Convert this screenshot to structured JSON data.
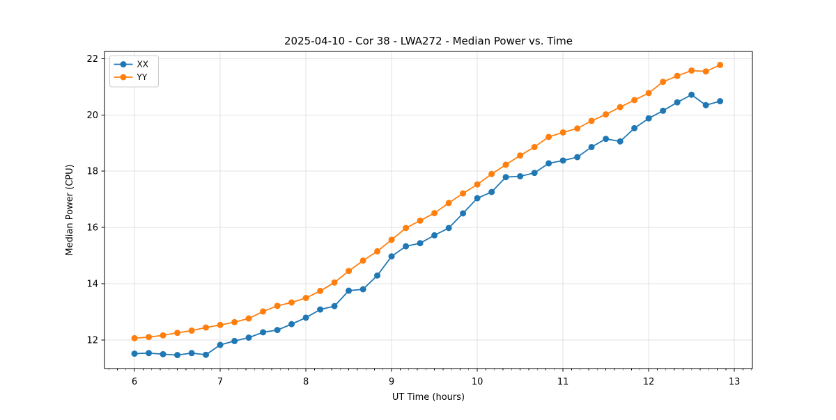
{
  "chart_data": {
    "type": "line",
    "title": "2025-04-10 - Cor 38 - LWA272 - Median Power vs. Time",
    "xlabel": "UT Time (hours)",
    "ylabel": "Median Power (CPU)",
    "xlim": [
      5.65,
      13.21
    ],
    "ylim": [
      10.98,
      22.26
    ],
    "xticks": [
      6,
      7,
      8,
      9,
      10,
      11,
      12,
      13
    ],
    "yticks": [
      12,
      14,
      16,
      18,
      20,
      22
    ],
    "x_minor_tick_step": 0.1,
    "grid": true,
    "legend": {
      "position": "upper-left",
      "entries": [
        "XX",
        "YY"
      ]
    },
    "x": [
      6.0,
      6.167,
      6.333,
      6.5,
      6.667,
      6.833,
      7.0,
      7.167,
      7.333,
      7.5,
      7.667,
      7.833,
      8.0,
      8.167,
      8.333,
      8.5,
      8.667,
      8.833,
      9.0,
      9.167,
      9.333,
      9.5,
      9.667,
      9.833,
      10.0,
      10.167,
      10.333,
      10.5,
      10.667,
      10.833,
      11.0,
      11.167,
      11.333,
      11.5,
      11.667,
      11.833,
      12.0,
      12.167,
      12.333,
      12.5,
      12.667,
      12.833
    ],
    "series": [
      {
        "name": "XX",
        "color": "#1f77b4",
        "values": [
          11.51,
          11.53,
          11.49,
          11.46,
          11.53,
          11.47,
          11.82,
          11.96,
          12.08,
          12.27,
          12.35,
          12.56,
          12.79,
          13.08,
          13.2,
          13.75,
          13.8,
          14.29,
          14.97,
          15.33,
          15.44,
          15.72,
          15.98,
          16.5,
          17.04,
          17.26,
          17.79,
          17.82,
          17.94,
          18.28,
          18.38,
          18.5,
          18.86,
          19.15,
          19.06,
          19.53,
          19.88,
          20.15,
          20.45,
          20.72,
          20.35,
          20.49
        ]
      },
      {
        "name": "YY",
        "color": "#ff7f0e",
        "values": [
          12.06,
          12.1,
          12.16,
          12.25,
          12.33,
          12.44,
          12.53,
          12.63,
          12.76,
          13.01,
          13.21,
          13.33,
          13.49,
          13.74,
          14.04,
          14.45,
          14.82,
          15.15,
          15.56,
          15.98,
          16.24,
          16.51,
          16.87,
          17.21,
          17.53,
          17.9,
          18.23,
          18.56,
          18.86,
          19.22,
          19.38,
          19.52,
          19.79,
          20.02,
          20.28,
          20.53,
          20.78,
          21.18,
          21.39,
          21.58,
          21.55,
          21.78
        ]
      }
    ]
  },
  "colors": {
    "background": "#ffffff",
    "axes_edge": "#000000",
    "grid": "#e0e0e0",
    "legend_edge": "#cccccc",
    "series_blue": "#1f77b4",
    "series_orange": "#ff7f0e"
  }
}
